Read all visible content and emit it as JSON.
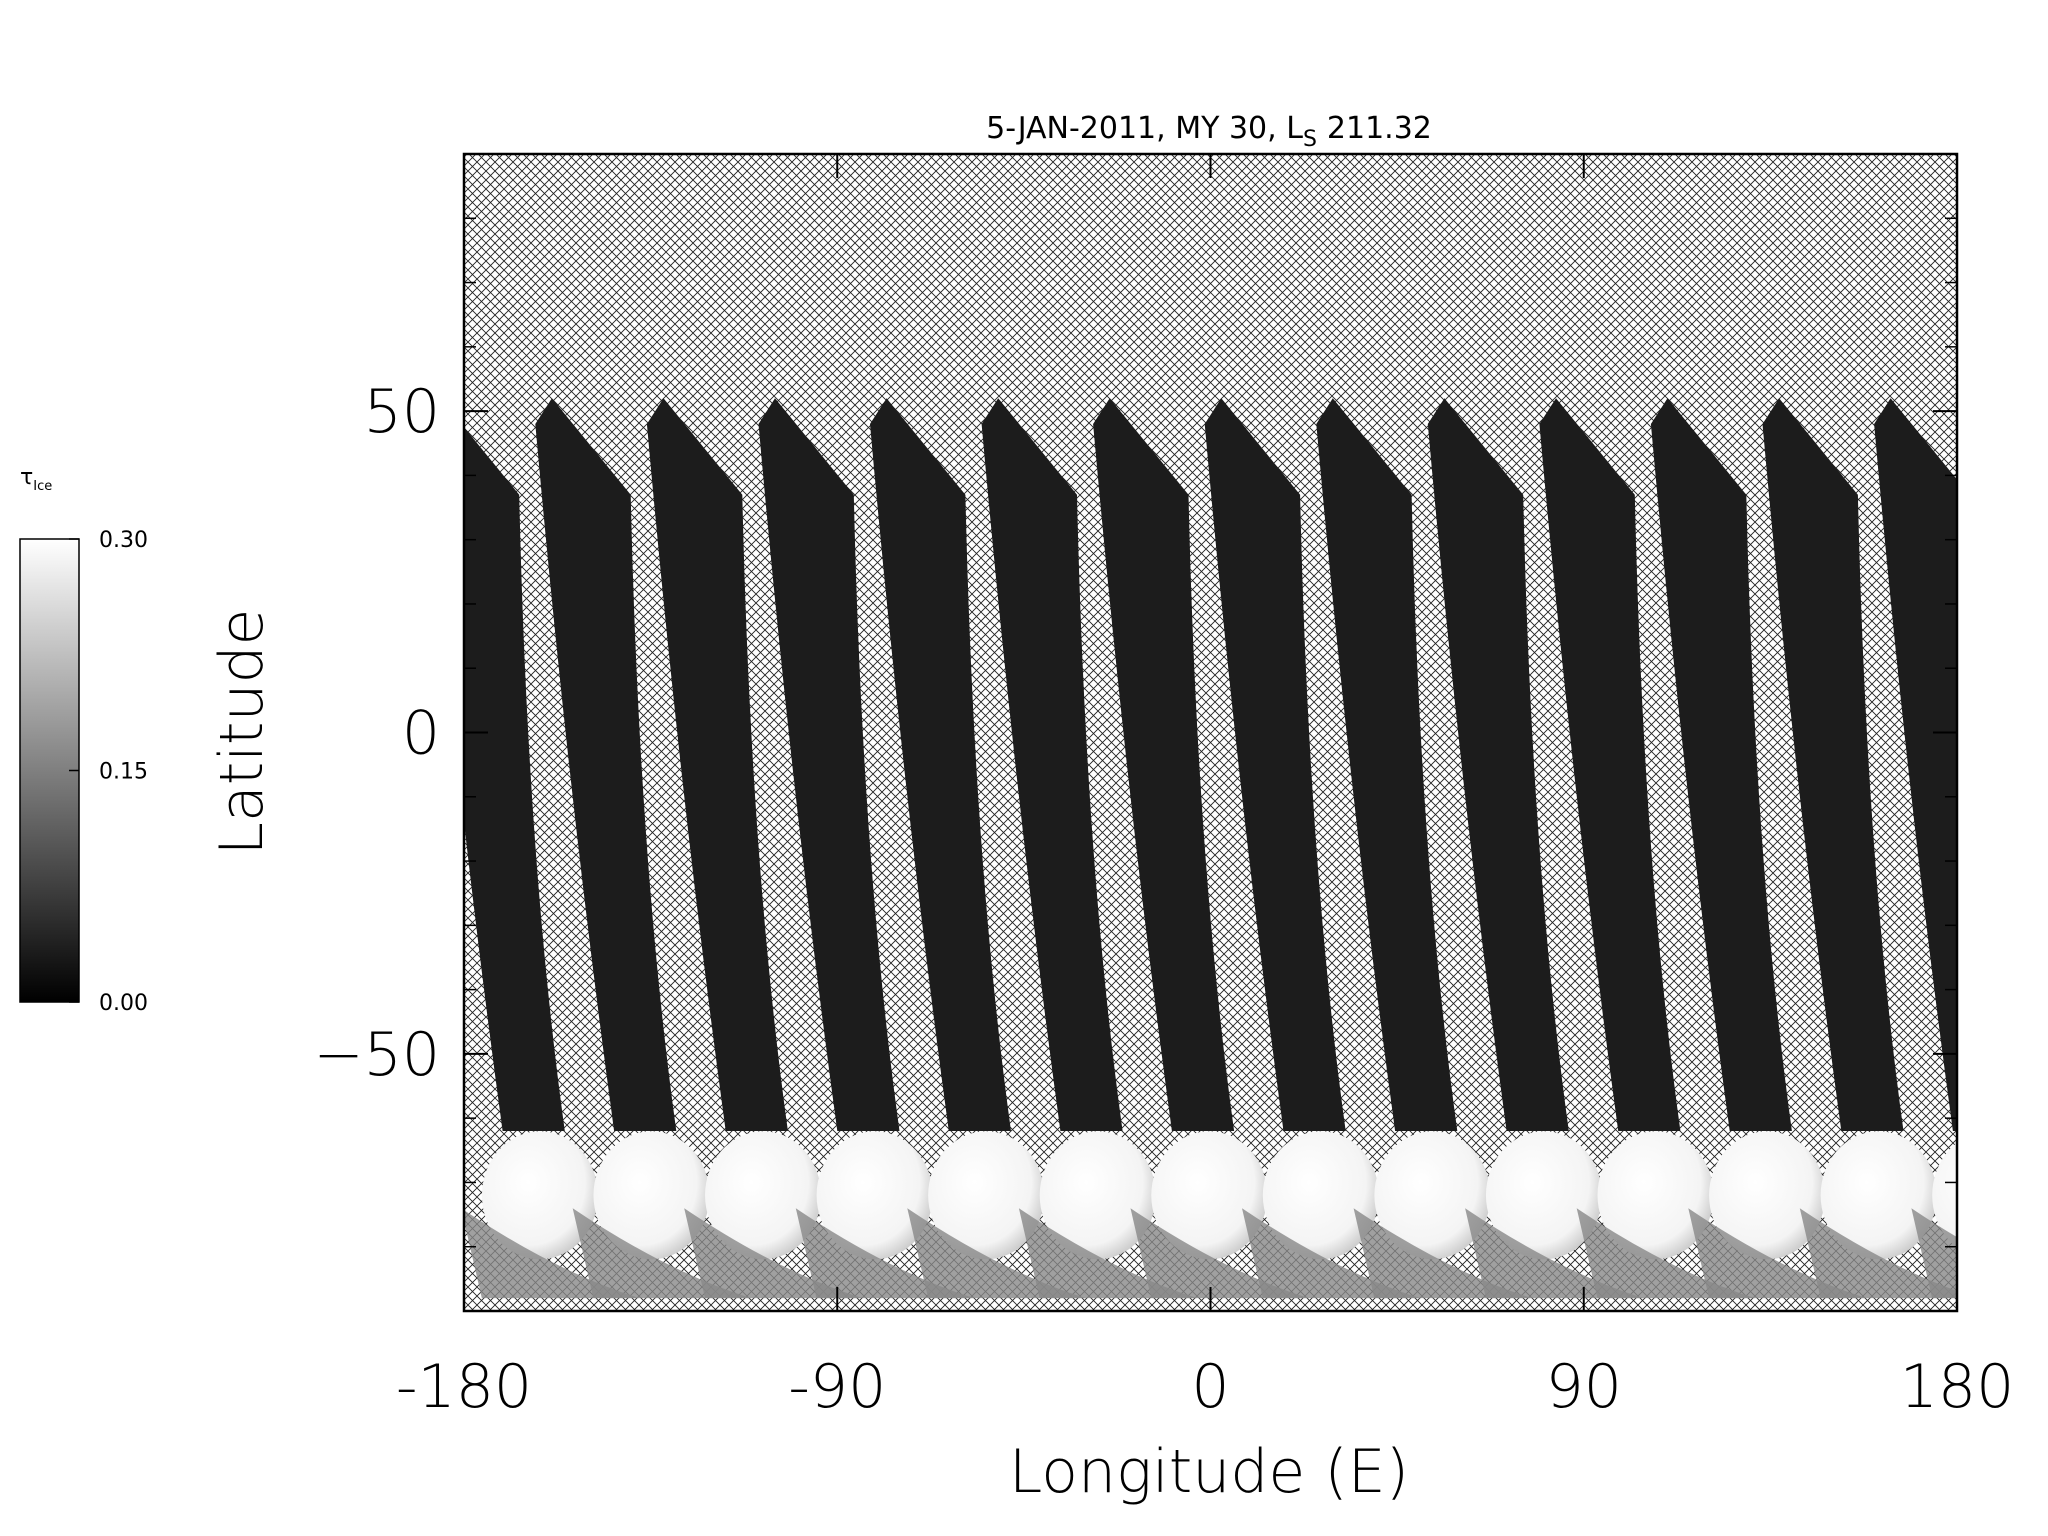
{
  "chart_data": {
    "type": "heatmap",
    "title": "5-JAN-2011, MY 30,  L",
    "title_subscript": "S",
    "title_value": "211.32",
    "x_label": "Longitude (E)",
    "y_label": "Latitude",
    "xlim": [
      -180,
      180
    ],
    "ylim": [
      -90,
      90
    ],
    "xticks": [
      -180,
      -90,
      0,
      90,
      180
    ],
    "yticks": [
      {
        "value": -50,
        "label": "−50"
      },
      0,
      50
    ],
    "yminorticks": [
      -80,
      -70,
      -60,
      -40,
      -30,
      -20,
      -10,
      10,
      20,
      30,
      40,
      60,
      70,
      80
    ],
    "colorbar": {
      "label": "τ",
      "label_subscript": "Ice",
      "lim": [
        0,
        0.3
      ],
      "ticks": [
        {
          "value": 0,
          "label": "0.00"
        },
        {
          "value": 0.15,
          "label": "0.15"
        },
        {
          "value": 0.3,
          "label": "0.30"
        }
      ],
      "colors": [
        "#000000",
        "#ffffff"
      ]
    }
  }
}
